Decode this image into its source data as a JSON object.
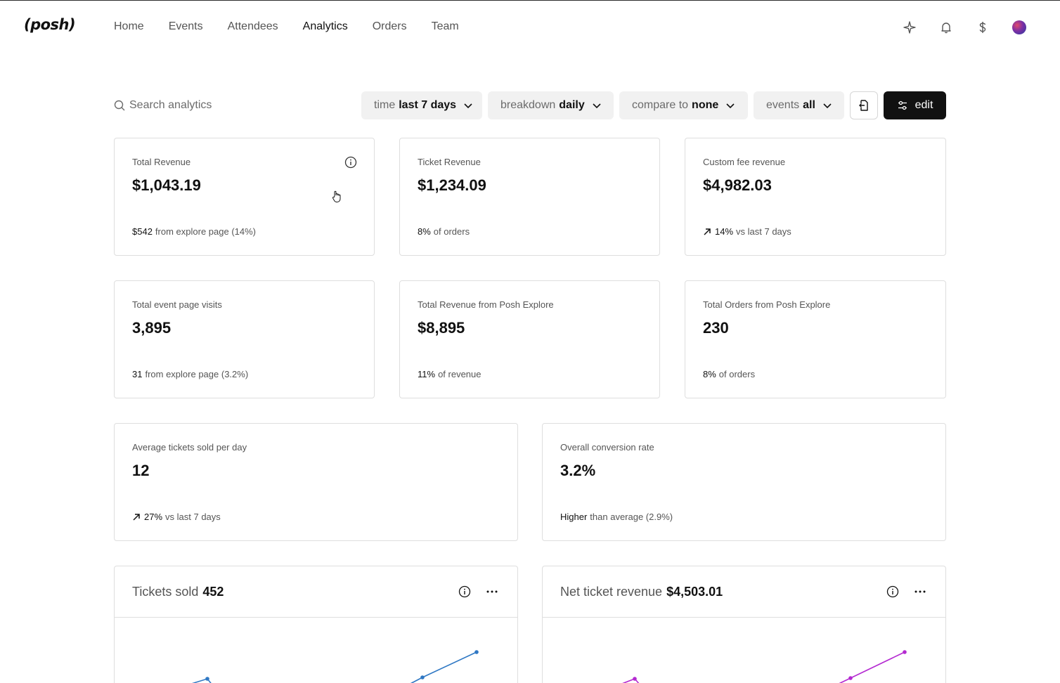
{
  "header": {
    "logo": "(posh)",
    "nav": [
      "Home",
      "Events",
      "Attendees",
      "Analytics",
      "Orders",
      "Team"
    ],
    "active_nav": "Analytics",
    "icons": [
      "sparkle-icon",
      "bell-icon",
      "dollar-icon",
      "avatar"
    ]
  },
  "toolbar": {
    "search_placeholder": "Search analytics",
    "filters": {
      "time": {
        "label": "time",
        "value": "last 7 days"
      },
      "breakdown": {
        "label": "breakdown",
        "value": "daily"
      },
      "compare": {
        "label": "compare to",
        "value": "none"
      },
      "events": {
        "label": "events",
        "value": "all"
      }
    },
    "edit_label": "edit"
  },
  "cards": {
    "total_revenue": {
      "label": "Total Revenue",
      "value": "$1,043.19",
      "foot_strong": "$542",
      "foot_text": "from explore page (14%)"
    },
    "ticket_revenue": {
      "label": "Ticket Revenue",
      "value": "$1,234.09",
      "foot_strong": "8%",
      "foot_text": "of orders"
    },
    "custom_fee": {
      "label": "Custom fee revenue",
      "value": "$4,982.03",
      "foot_strong": "14%",
      "foot_text": "vs last 7 days"
    },
    "page_visits": {
      "label": "Total event page visits",
      "value": "3,895",
      "foot_strong": "31",
      "foot_text": "from explore page (3.2%)"
    },
    "explore_revenue": {
      "label": "Total Revenue from Posh Explore",
      "value": "$8,895",
      "foot_strong": "11%",
      "foot_text": "of revenue"
    },
    "explore_orders": {
      "label": "Total Orders from Posh Explore",
      "value": "230",
      "foot_strong": "8%",
      "foot_text": "of orders"
    },
    "avg_tickets": {
      "label": "Average tickets sold per day",
      "value": "12",
      "foot_strong": "27%",
      "foot_text": "vs last 7 days"
    },
    "conversion": {
      "label": "Overall conversion rate",
      "value": "3.2%",
      "foot_strong": "Higher",
      "foot_text": "than average (2.9%)"
    }
  },
  "charts": {
    "tickets": {
      "title": "Tickets sold",
      "total": "452",
      "color": "#2f78c4"
    },
    "revenue": {
      "title": "Net ticket revenue",
      "total": "$4,503.01",
      "color": "#b42ad1"
    }
  }
}
